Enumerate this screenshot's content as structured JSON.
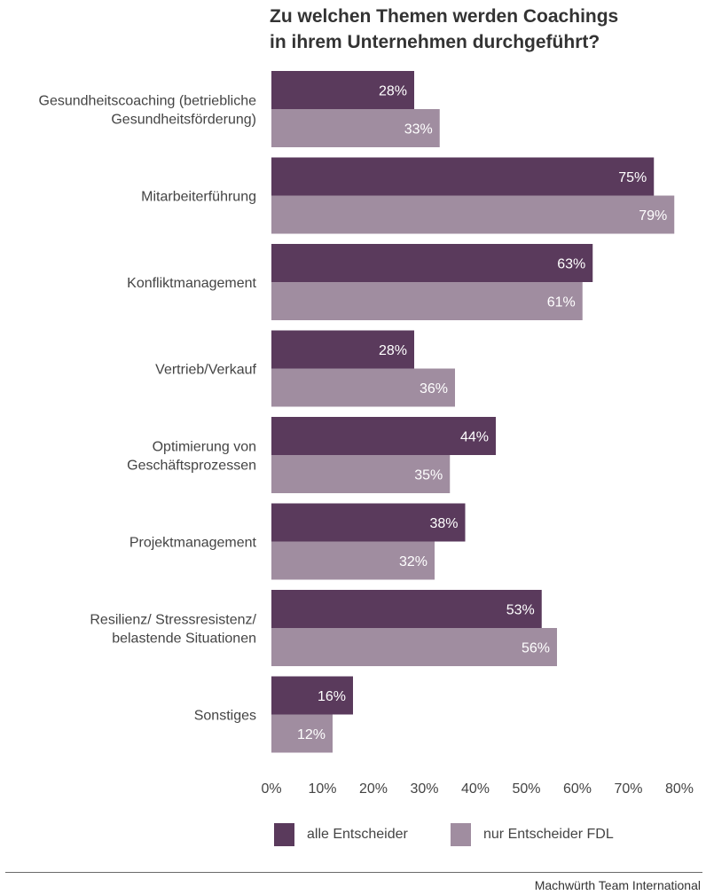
{
  "chart_data": {
    "type": "bar",
    "orientation": "horizontal",
    "title_lines": [
      "Zu welchen Themen werden Coachings",
      "in ihrem Unternehmen durchgeführt?"
    ],
    "categories": [
      [
        "Gesundheitscoaching (betriebliche",
        "Gesundheitsförderung)"
      ],
      [
        "Mitarbeiterführung"
      ],
      [
        "Konfliktmanagement"
      ],
      [
        "Vertrieb/Verkauf"
      ],
      [
        "Optimierung von",
        "Geschäftsprozessen"
      ],
      [
        "Projektmanagement"
      ],
      [
        "Resilienz/ Stressresistenz/",
        "belastende Situationen"
      ],
      [
        "Sonstiges"
      ]
    ],
    "series": [
      {
        "name": "alle Entscheider",
        "color": "#5a3a5c",
        "values": [
          28,
          75,
          63,
          28,
          44,
          38,
          53,
          16
        ]
      },
      {
        "name": "nur Entscheider FDL",
        "color": "#a08da0",
        "values": [
          33,
          79,
          61,
          36,
          35,
          32,
          56,
          12
        ]
      }
    ],
    "value_suffix": "%",
    "xlim": [
      0,
      80
    ],
    "ticks": [
      "0%",
      "10%",
      "20%",
      "30%",
      "40%",
      "50%",
      "60%",
      "70%",
      "80%"
    ],
    "grid": false,
    "legend_position": "bottom"
  },
  "legend": {
    "items": [
      "alle Entscheider",
      "nur Entscheider FDL"
    ]
  },
  "footer": {
    "credit": "Machwürth Team International"
  }
}
